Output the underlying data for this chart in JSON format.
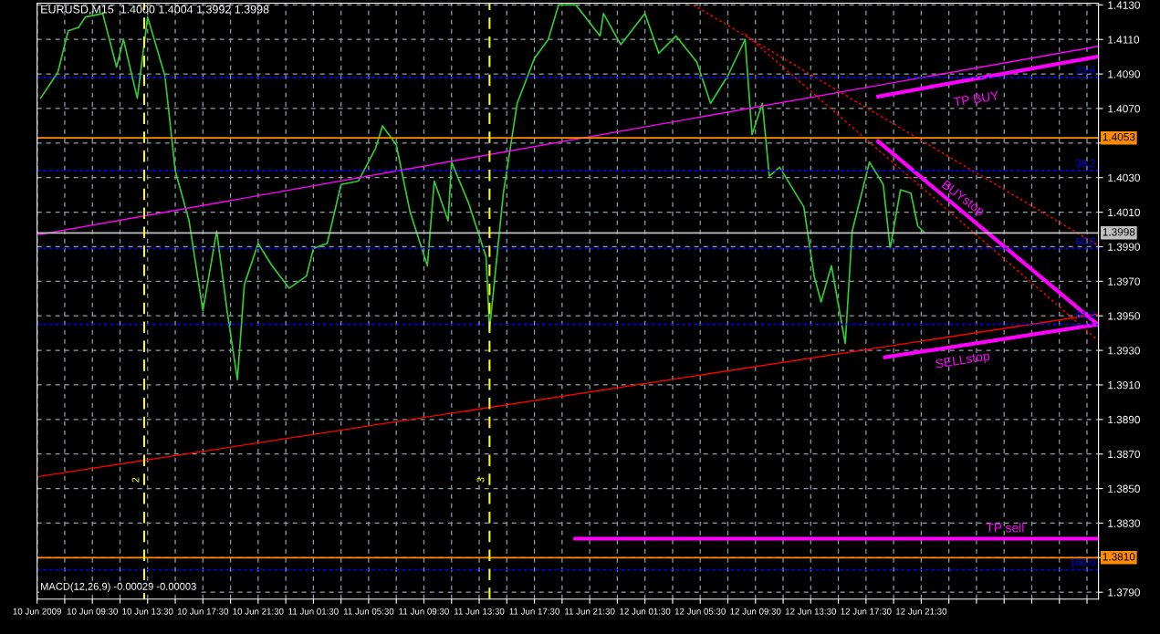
{
  "chart_data": {
    "type": "line",
    "title": "EURUSD,M15  1.4000 1.4004 1.3992 1.3998",
    "x": [
      "2009-06-10T05:45",
      "2009-06-10T07:00",
      "2009-06-10T07:45",
      "2009-06-10T08:30",
      "2009-06-10T09:00",
      "2009-06-10T10:15",
      "2009-06-10T11:15",
      "2009-06-10T11:45",
      "2009-06-10T12:45",
      "2009-06-10T13:30",
      "2009-06-10T14:45",
      "2009-06-10T15:30",
      "2009-06-10T16:30",
      "2009-06-10T17:30",
      "2009-06-10T18:30",
      "2009-06-10T19:15",
      "2009-06-10T20:00",
      "2009-06-10T20:30",
      "2009-06-10T21:30",
      "2009-06-10T22:30",
      "2009-06-10T23:45",
      "2009-06-11T01:00",
      "2009-06-11T01:30",
      "2009-06-11T02:30",
      "2009-06-11T03:30",
      "2009-06-11T04:45",
      "2009-06-11T06:00",
      "2009-06-11T06:30",
      "2009-06-11T07:30",
      "2009-06-11T08:30",
      "2009-06-11T09:45",
      "2009-06-11T10:15",
      "2009-06-11T11:15",
      "2009-06-11T11:30",
      "2009-06-11T12:45",
      "2009-06-11T14:00",
      "2009-06-11T14:15",
      "2009-06-11T15:15",
      "2009-06-11T16:15",
      "2009-06-11T17:30",
      "2009-06-11T18:30",
      "2009-06-11T19:15",
      "2009-06-11T20:30",
      "2009-06-11T22:15",
      "2009-06-11T22:30",
      "2009-06-11T23:45",
      "2009-06-12T01:30",
      "2009-06-12T02:30",
      "2009-06-12T03:45",
      "2009-06-12T05:15",
      "2009-06-12T06:15",
      "2009-06-12T07:30",
      "2009-06-12T08:45",
      "2009-06-12T09:15",
      "2009-06-12T10:00",
      "2009-06-12T10:30",
      "2009-06-12T11:15",
      "2009-06-12T13:00",
      "2009-06-12T13:45",
      "2009-06-12T14:15",
      "2009-06-12T15:00",
      "2009-06-12T16:00",
      "2009-06-12T16:30",
      "2009-06-12T17:45",
      "2009-06-12T18:45",
      "2009-06-12T19:15",
      "2009-06-12T20:00",
      "2009-06-12T20:45",
      "2009-06-12T21:15",
      "2009-06-12T21:45"
    ],
    "series": [
      {
        "color": "#32cd32",
        "values": [
          1.4076,
          1.4091,
          1.4115,
          1.4117,
          1.4123,
          1.4125,
          1.4094,
          1.411,
          1.4076,
          1.4123,
          1.4089,
          1.4034,
          1.4005,
          1.3953,
          1.3999,
          1.3953,
          1.3913,
          1.3968,
          1.3992,
          1.3979,
          1.3966,
          1.3973,
          1.3989,
          1.3992,
          1.4026,
          1.4028,
          1.4047,
          1.406,
          1.4049,
          1.401,
          1.3979,
          1.4028,
          1.4005,
          1.4039,
          1.4015,
          1.3984,
          1.3942,
          1.4021,
          1.4073,
          1.4099,
          1.411,
          1.413,
          1.413,
          1.4112,
          1.4125,
          1.4107,
          1.4125,
          1.4102,
          1.4112,
          1.4097,
          1.4073,
          1.4089,
          1.411,
          1.4055,
          1.4073,
          1.4031,
          1.4036,
          1.4013,
          1.3973,
          1.3958,
          1.3979,
          1.3934,
          1.3999,
          1.4039,
          1.4026,
          1.3989,
          1.4023,
          1.4021,
          1.4002,
          1.3998
        ]
      },
      {
        "color": "#ff00ff",
        "x": [
          "2009-06-10T05:38",
          "2009-06-13T10:16"
        ],
        "values": [
          1.3997,
          1.4106
        ]
      },
      {
        "color": "#ff0000",
        "x": [
          "2009-06-10T05:38",
          "2009-06-13T10:16"
        ],
        "values": [
          1.3857,
          1.3951
        ]
      },
      {
        "color": "#ff0000",
        "x": [
          "2009-06-12T05:00",
          "2009-06-13T10:16"
        ],
        "values": [
          1.413,
          1.3991
        ],
        "line_style": "dotted"
      },
      {
        "color": "#ff0000",
        "x": [
          "2009-06-12T08:45",
          "2009-06-13T10:16"
        ],
        "values": [
          1.4113,
          1.3936
        ],
        "line_style": "dotted"
      },
      {
        "color": "#ff00ff",
        "x": [
          "2009-06-12T18:23",
          "2009-06-13T10:16"
        ],
        "values": [
          1.4077,
          1.41
        ]
      },
      {
        "color": "#ff00ff",
        "x": [
          "2009-06-12T18:23",
          "2009-06-13T10:16"
        ],
        "values": [
          1.4051,
          1.3945
        ]
      },
      {
        "color": "#ff00ff",
        "x": [
          "2009-06-12T18:53",
          "2009-06-13T10:16"
        ],
        "values": [
          1.3926,
          1.3945
        ]
      },
      {
        "color": "#ff00ff",
        "x": [
          "2009-06-11T20:27",
          "2009-06-13T10:16"
        ],
        "values": [
          1.3821,
          1.3821
        ]
      }
    ],
    "xlim": [
      "2009-06-10T05:30",
      "2009-06-13T10:20"
    ],
    "xticks": [
      {
        "value": "2009-06-10T05:30",
        "label": "10 Jun 2009"
      },
      {
        "value": "2009-06-10T07:30",
        "label": null
      },
      {
        "value": "2009-06-10T09:30",
        "label": "10 Jun 09:30"
      },
      {
        "value": "2009-06-10T11:30",
        "label": null
      },
      {
        "value": "2009-06-10T13:30",
        "label": "10 Jun 13:30"
      },
      {
        "value": "2009-06-10T15:30",
        "label": null
      },
      {
        "value": "2009-06-10T17:30",
        "label": "10 Jun 17:30"
      },
      {
        "value": "2009-06-10T19:30",
        "label": null
      },
      {
        "value": "2009-06-10T21:30",
        "label": "10 Jun 21:30"
      },
      {
        "value": "2009-06-10T23:30",
        "label": null
      },
      {
        "value": "2009-06-11T01:30",
        "label": "11 Jun 01:30"
      },
      {
        "value": "2009-06-11T03:30",
        "label": null
      },
      {
        "value": "2009-06-11T05:30",
        "label": "11 Jun 05:30"
      },
      {
        "value": "2009-06-11T07:30",
        "label": null
      },
      {
        "value": "2009-06-11T09:30",
        "label": "11 Jun 09:30"
      },
      {
        "value": "2009-06-11T11:30",
        "label": null
      },
      {
        "value": "2009-06-11T13:30",
        "label": "11 Jun 13:30"
      },
      {
        "value": "2009-06-11T15:30",
        "label": null
      },
      {
        "value": "2009-06-11T17:30",
        "label": "11 Jun 17:30"
      },
      {
        "value": "2009-06-11T19:30",
        "label": null
      },
      {
        "value": "2009-06-11T21:30",
        "label": "11 Jun 21:30"
      },
      {
        "value": "2009-06-11T23:30",
        "label": null
      },
      {
        "value": "2009-06-12T01:30",
        "label": "12 Jun 01:30"
      },
      {
        "value": "2009-06-12T03:30",
        "label": null
      },
      {
        "value": "2009-06-12T05:30",
        "label": "12 Jun 05:30"
      },
      {
        "value": "2009-06-12T07:30",
        "label": null
      },
      {
        "value": "2009-06-12T09:30",
        "label": "12 Jun 09:30"
      },
      {
        "value": "2009-06-12T11:30",
        "label": null
      },
      {
        "value": "2009-06-12T13:30",
        "label": "12 Jun 13:30"
      },
      {
        "value": "2009-06-12T15:30",
        "label": null
      },
      {
        "value": "2009-06-12T17:30",
        "label": "12 Jun 17:30"
      },
      {
        "value": "2009-06-12T19:30",
        "label": null
      },
      {
        "value": "2009-06-12T21:30",
        "label": "12 Jun 21:30"
      },
      {
        "value": "2009-06-12T23:30",
        "label": null
      },
      {
        "value": "2009-06-13T01:30",
        "label": null
      },
      {
        "value": "2009-06-13T03:30",
        "label": null
      },
      {
        "value": "2009-06-13T05:30",
        "label": null
      },
      {
        "value": "2009-06-13T07:30",
        "label": null
      },
      {
        "value": "2009-06-13T09:30",
        "label": null
      }
    ],
    "ylim": [
      1.3786,
      1.4131
    ],
    "yticks": [
      {
        "value": 1.379,
        "label": "1.3790"
      },
      {
        "value": 1.381,
        "label": null
      },
      {
        "value": 1.383,
        "label": "1.3830"
      },
      {
        "value": 1.385,
        "label": "1.3850"
      },
      {
        "value": 1.387,
        "label": "1.3870"
      },
      {
        "value": 1.389,
        "label": "1.3890"
      },
      {
        "value": 1.391,
        "label": "1.3910"
      },
      {
        "value": 1.393,
        "label": "1.3930"
      },
      {
        "value": 1.395,
        "label": "1.3950"
      },
      {
        "value": 1.397,
        "label": "1.3970"
      },
      {
        "value": 1.399,
        "label": "1.3990"
      },
      {
        "value": 1.401,
        "label": "1.4010"
      },
      {
        "value": 1.403,
        "label": "1.4030"
      },
      {
        "value": 1.405,
        "label": null
      },
      {
        "value": 1.407,
        "label": "1.4070"
      },
      {
        "value": 1.409,
        "label": "1.4090"
      },
      {
        "value": 1.411,
        "label": "1.4110"
      },
      {
        "value": 1.413,
        "label": "1.4130"
      }
    ],
    "grid": true,
    "line_style": "solid",
    "ref_lines": [
      {
        "axis": "y",
        "value": 1.4088,
        "color": "#0000ff",
        "line_style": "dotted"
      },
      {
        "axis": "y",
        "value": 1.4034,
        "color": "#0000ff",
        "line_style": "dotted"
      },
      {
        "axis": "y",
        "value": 1.3989,
        "color": "#0000ff",
        "line_style": "dotted"
      },
      {
        "axis": "y",
        "value": 1.3945,
        "color": "#0000ff",
        "line_style": "dotted"
      },
      {
        "axis": "y",
        "value": 1.3803,
        "color": "#0000ff",
        "line_style": "dotted"
      },
      {
        "axis": "y",
        "value": 1.4053,
        "label": "1.4053",
        "color": "#ff8c00",
        "line_style": "solid"
      },
      {
        "axis": "y",
        "value": 1.381,
        "label": "1.3810",
        "color": "#ff8c00",
        "line_style": "solid"
      },
      {
        "axis": "y",
        "value": 1.3998,
        "label": "1.3998",
        "color": "#c0c0c0",
        "line_style": "solid"
      },
      {
        "axis": "x",
        "value": "2009-06-10T13:15",
        "color": "#ffff00",
        "line_style": "dashed"
      },
      {
        "axis": "x",
        "value": "2009-06-11T14:15",
        "color": "#ffff00",
        "line_style": "dashed"
      }
    ],
    "annotations": [
      "TP BUY",
      "BUYstop",
      "SELLstop",
      "TP sell",
      "23.6",
      "38.2",
      "50.0",
      "61.8",
      "100.0",
      "2",
      "3",
      "MACD(12,26,9) -0.00029 -0.00003"
    ]
  }
}
